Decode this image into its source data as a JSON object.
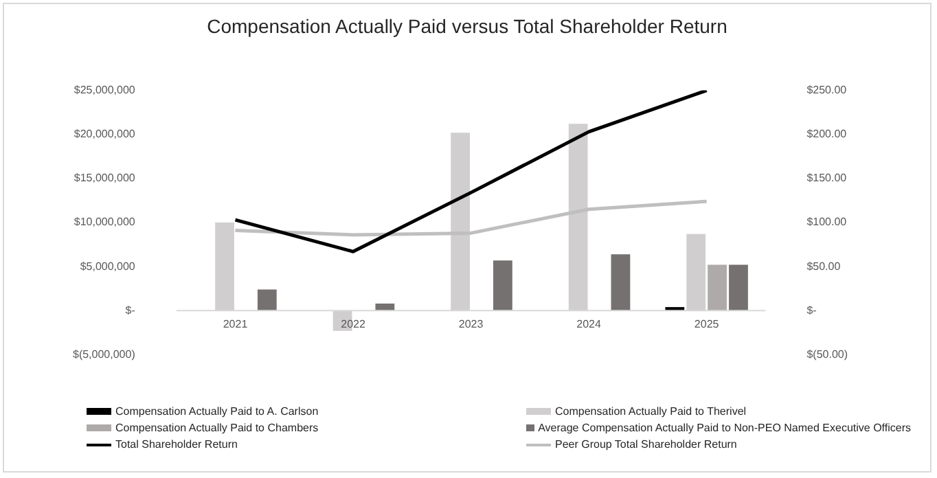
{
  "chart_data": {
    "type": "bar",
    "title": "Compensation Actually Paid versus Total Shareholder Return",
    "categories": [
      "2021",
      "2022",
      "2023",
      "2024",
      "2025"
    ],
    "series": [
      {
        "name": "Compensation Actually Paid to A. Carlson",
        "color": "#000000",
        "values": [
          null,
          null,
          null,
          null,
          400000
        ]
      },
      {
        "name": "Compensation Actually Paid to Therivel",
        "color": "#d0cece",
        "values": [
          10000000,
          -2300000,
          20200000,
          21200000,
          8700000
        ]
      },
      {
        "name": "Compensation Actually Paid to Chambers",
        "color": "#aeaaaa",
        "values": [
          null,
          null,
          null,
          null,
          5200000
        ]
      },
      {
        "name": "Average Compensation Actually Paid to Non-PEO Named Executive Officers",
        "color": "#767171",
        "values": [
          2400000,
          800000,
          5700000,
          6400000,
          5200000
        ]
      },
      {
        "name": "Total Shareholder Return",
        "type": "line",
        "axis": "y2",
        "color": "#000000",
        "values": [
          103,
          67,
          134,
          203,
          250
        ]
      },
      {
        "name": "Peer Group Total Shareholder Return",
        "type": "line",
        "axis": "y2",
        "color": "#bfbfbf",
        "values": [
          91,
          86,
          88,
          115,
          124
        ]
      }
    ],
    "ylim": [
      -5000000,
      25000000
    ],
    "yticks": [
      {
        "value": -5000000,
        "label": "$(5,000,000)"
      },
      {
        "value": 0,
        "label": "$-"
      },
      {
        "value": 5000000,
        "label": "$5,000,000"
      },
      {
        "value": 10000000,
        "label": "$10,000,000"
      },
      {
        "value": 15000000,
        "label": "$15,000,000"
      },
      {
        "value": 20000000,
        "label": "$20,000,000"
      },
      {
        "value": 25000000,
        "label": "$25,000,000"
      }
    ],
    "y2lim": [
      -50,
      250
    ],
    "y2ticks": [
      {
        "value": -50,
        "label": "$(50.00)"
      },
      {
        "value": 0,
        "label": "$-"
      },
      {
        "value": 50,
        "label": "$50.00"
      },
      {
        "value": 100,
        "label": "$100.00"
      },
      {
        "value": 150,
        "label": "$150.00"
      },
      {
        "value": 200,
        "label": "$200.00"
      },
      {
        "value": 250,
        "label": "$250.00"
      }
    ],
    "grid": false,
    "legend": "bottom",
    "marker": "none"
  }
}
